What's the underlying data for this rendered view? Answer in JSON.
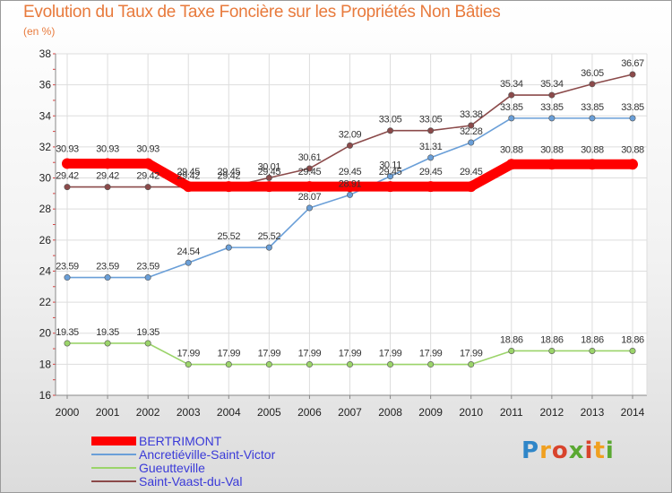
{
  "title": "Evolution du Taux de Taxe Foncière sur les Propriétés Non Bâties",
  "unit_label": "(en %)",
  "logo_text": "Proxiti",
  "chart_data": {
    "type": "line",
    "title": "Evolution du Taux de Taxe Foncière sur les Propriétés Non Bâties",
    "ylabel": "(en %)",
    "xlabel": "",
    "ylim": [
      16,
      38
    ],
    "yticks": [
      16,
      18,
      20,
      22,
      24,
      26,
      28,
      30,
      32,
      34,
      36,
      38
    ],
    "grid": true,
    "legend_position": "bottom-left",
    "x": [
      "2000",
      "2001",
      "2002",
      "2003",
      "2004",
      "2005",
      "2006",
      "2007",
      "2008",
      "2009",
      "2010",
      "2011",
      "2012",
      "2013",
      "2014"
    ],
    "series": [
      {
        "name": "BERTRIMONT",
        "color": "#ff0000",
        "values": [
          30.93,
          30.93,
          30.93,
          29.45,
          29.45,
          29.45,
          29.45,
          29.45,
          29.45,
          29.45,
          29.45,
          30.88,
          30.88,
          30.88,
          30.88
        ],
        "labels": [
          "30.93",
          "30.93",
          "30.93",
          "29.45",
          "29.45",
          "29.45",
          "29.45",
          "29.45",
          "29.45",
          "29.45",
          "29.45",
          "30.88",
          "30.88",
          "30.88",
          "30.88"
        ]
      },
      {
        "name": "Ancretiéville-Saint-Victor",
        "color": "#6a9fd8",
        "values": [
          23.59,
          23.59,
          23.59,
          24.54,
          25.52,
          25.52,
          28.07,
          28.91,
          30.11,
          31.31,
          32.28,
          33.85,
          33.85,
          33.85,
          33.85
        ],
        "labels": [
          "23.59",
          "23.59",
          "23.59",
          "24.54",
          "25.52",
          "25.52",
          "28.07",
          "28.91",
          "30.11",
          "31.31",
          "32.28",
          "33.85",
          "33.85",
          "33.85",
          "33.85"
        ]
      },
      {
        "name": "Gueutteville",
        "color": "#9bd46a",
        "values": [
          19.35,
          19.35,
          19.35,
          17.99,
          17.99,
          17.99,
          17.99,
          17.99,
          17.99,
          17.99,
          17.99,
          18.86,
          18.86,
          18.86,
          18.86
        ],
        "labels": [
          "19.35",
          "19.35",
          "19.35",
          "17.99",
          "17.99",
          "17.99",
          "17.99",
          "17.99",
          "17.99",
          "17.99",
          "17.99",
          "18.86",
          "18.86",
          "18.86",
          "18.86"
        ]
      },
      {
        "name": "Saint-Vaast-du-Val",
        "color": "#8b4a4a",
        "values": [
          29.42,
          29.42,
          29.42,
          29.42,
          29.42,
          30.01,
          30.61,
          32.09,
          33.05,
          33.05,
          33.38,
          35.34,
          35.34,
          36.05,
          36.67
        ],
        "labels": [
          "29.42",
          "29.42",
          "29.42",
          "29.42",
          "29.42",
          "30.01",
          "30.61",
          "32.09",
          "33.05",
          "33.05",
          "33.38",
          "35.34",
          "35.34",
          "36.05",
          "36.67"
        ]
      }
    ]
  }
}
